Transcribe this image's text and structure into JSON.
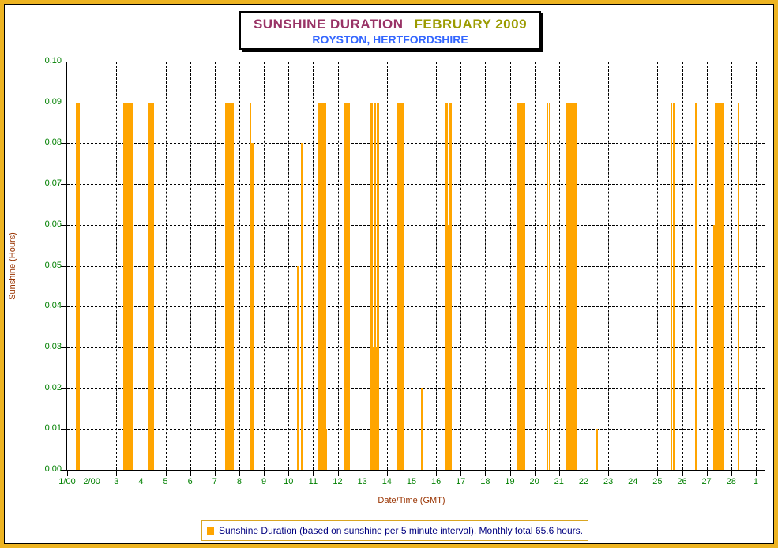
{
  "frame": {
    "border_color": "#EDB422"
  },
  "title_box": {
    "title_main": "SUNSHINE DURATION",
    "title_month": "FEBRUARY 2009",
    "subtitle": "ROYSTON, HERTFORDSHIRE",
    "title_main_color": "#993366",
    "title_month_color": "#9B9B00",
    "subtitle_color": "#3366FF"
  },
  "legend": {
    "swatch_color": "#FFA500",
    "label": "Sunshine Duration (based on sunshine per 5 minute interval). Monthly total 65.6 hours.",
    "text_color": "#000080",
    "border_color": "#D9A521"
  },
  "chart_data": {
    "type": "bar",
    "title": "SUNSHINE DURATION FEBRUARY 2009",
    "subtitle": "ROYSTON, HERTFORDSHIRE",
    "xlabel": "Date/Time (GMT)",
    "ylabel": "Sunshine (Hours)",
    "ylim": [
      0,
      0.1
    ],
    "ytick_step": 0.01,
    "y_tick_labels": [
      "0.00",
      "0.01",
      "0.02",
      "0.03",
      "0.04",
      "0.05",
      "0.06",
      "0.07",
      "0.08",
      "0.09",
      "0.10"
    ],
    "x_tick_labels": [
      "1/00",
      "2/00",
      "3",
      "4",
      "5",
      "6",
      "7",
      "8",
      "9",
      "10",
      "11",
      "12",
      "13",
      "14",
      "15",
      "16",
      "17",
      "18",
      "19",
      "20",
      "21",
      "22",
      "23",
      "24",
      "25",
      "26",
      "27",
      "28",
      "1"
    ],
    "grid": true,
    "bar_color": "#FFA500",
    "tick_label_color": "#008000",
    "axis_title_color": "#993300",
    "bars": [
      {
        "start": 1.35,
        "end": 1.53,
        "hours": 0.09
      },
      {
        "start": 3.28,
        "end": 3.66,
        "hours": 0.09
      },
      {
        "start": 4.26,
        "end": 4.52,
        "hours": 0.09
      },
      {
        "start": 7.41,
        "end": 7.79,
        "hours": 0.09
      },
      {
        "start": 8.42,
        "end": 8.48,
        "hours": 0.09
      },
      {
        "start": 8.48,
        "end": 8.61,
        "hours": 0.08
      },
      {
        "start": 10.36,
        "end": 10.4,
        "hours": 0.05
      },
      {
        "start": 10.52,
        "end": 10.56,
        "hours": 0.08
      },
      {
        "start": 11.21,
        "end": 11.52,
        "hours": 0.09
      },
      {
        "start": 11.53,
        "end": 11.56,
        "hours": 0.01
      },
      {
        "start": 12.24,
        "end": 12.5,
        "hours": 0.09
      },
      {
        "start": 13.3,
        "end": 13.43,
        "hours": 0.09
      },
      {
        "start": 13.43,
        "end": 13.49,
        "hours": 0.03
      },
      {
        "start": 13.49,
        "end": 13.56,
        "hours": 0.09
      },
      {
        "start": 13.56,
        "end": 13.59,
        "hours": 0.03
      },
      {
        "start": 13.59,
        "end": 13.7,
        "hours": 0.09
      },
      {
        "start": 14.39,
        "end": 14.71,
        "hours": 0.09
      },
      {
        "start": 15.4,
        "end": 15.45,
        "hours": 0.02
      },
      {
        "start": 16.35,
        "end": 16.48,
        "hours": 0.09
      },
      {
        "start": 16.48,
        "end": 16.55,
        "hours": 0.06
      },
      {
        "start": 16.55,
        "end": 16.64,
        "hours": 0.09
      },
      {
        "start": 17.43,
        "end": 17.47,
        "hours": 0.01
      },
      {
        "start": 19.3,
        "end": 19.63,
        "hours": 0.09
      },
      {
        "start": 20.5,
        "end": 20.55,
        "hours": 0.09
      },
      {
        "start": 20.58,
        "end": 20.63,
        "hours": 0.09
      },
      {
        "start": 21.26,
        "end": 21.71,
        "hours": 0.09
      },
      {
        "start": 22.53,
        "end": 22.58,
        "hours": 0.01
      },
      {
        "start": 25.53,
        "end": 25.61,
        "hours": 0.09
      },
      {
        "start": 25.63,
        "end": 25.68,
        "hours": 0.09
      },
      {
        "start": 26.54,
        "end": 26.59,
        "hours": 0.09
      },
      {
        "start": 27.28,
        "end": 27.33,
        "hours": 0.06
      },
      {
        "start": 27.33,
        "end": 27.51,
        "hours": 0.09
      },
      {
        "start": 27.51,
        "end": 27.57,
        "hours": 0.04
      },
      {
        "start": 27.57,
        "end": 27.7,
        "hours": 0.09
      },
      {
        "start": 28.26,
        "end": 28.34,
        "hours": 0.09
      }
    ]
  }
}
